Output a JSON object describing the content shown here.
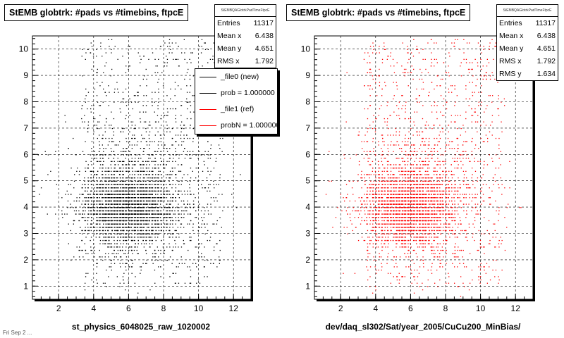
{
  "chart_data": [
    {
      "type": "scatter",
      "title": "StEMB globtrk: #pads vs #timebins, ftpcE",
      "xlabel": "st_physics_6048025_raw_1020002",
      "ylabel": "",
      "xlim": [
        0.5,
        13
      ],
      "ylim": [
        0.5,
        10.5
      ],
      "xticks": [
        "2",
        "4",
        "6",
        "8",
        "10",
        "12"
      ],
      "yticks": [
        "1",
        "2",
        "3",
        "4",
        "5",
        "6",
        "7",
        "8",
        "9",
        "10"
      ],
      "grid": true,
      "marker_color": "#000000",
      "point_count": 11317,
      "density_center": [
        5.9,
        4.0
      ],
      "stats": {
        "header": "StEMBQAGlotrkPadTimeFtpcE",
        "rows": [
          {
            "label": "Entries",
            "value": "11317"
          },
          {
            "label": "Mean x",
            "value": "6.438"
          },
          {
            "label": "Mean y",
            "value": "4.651"
          },
          {
            "label": "RMS x",
            "value": "1.792"
          }
        ]
      },
      "legend": {
        "placement": "top-right",
        "entries": [
          {
            "label": "_file0 (new)",
            "color": "#000000"
          },
          {
            "label": "prob = 1.000000",
            "color": "#000000"
          },
          {
            "label": "_file1 (ref)",
            "color": "#ff0000"
          },
          {
            "label": "probN = 1.000000",
            "color": "#ff0000"
          }
        ]
      }
    },
    {
      "type": "scatter",
      "title": "StEMB globtrk: #pads vs #timebins, ftpcE",
      "xlabel": "dev/daq_sl302/Sat/year_2005/CuCu200_MinBias/",
      "ylabel": "",
      "xlim": [
        0.5,
        13
      ],
      "ylim": [
        0.5,
        10.5
      ],
      "xticks": [
        "2",
        "4",
        "6",
        "8",
        "10",
        "12"
      ],
      "yticks": [
        "1",
        "2",
        "3",
        "4",
        "5",
        "6",
        "7",
        "8",
        "9",
        "10"
      ],
      "grid": true,
      "marker_color": "#ff0000",
      "point_count": 11317,
      "density_center": [
        5.9,
        4.0
      ],
      "stats": {
        "header": "StEMBQAGlotrkPadTimeFtpcE",
        "rows": [
          {
            "label": "Entries",
            "value": "11317"
          },
          {
            "label": "Mean x",
            "value": "6.438"
          },
          {
            "label": "Mean y",
            "value": "4.651"
          },
          {
            "label": "RMS x",
            "value": "1.792"
          },
          {
            "label": "RMS y",
            "value": "1.634"
          }
        ]
      }
    }
  ],
  "footnote": "Fri Sep 2 ..."
}
